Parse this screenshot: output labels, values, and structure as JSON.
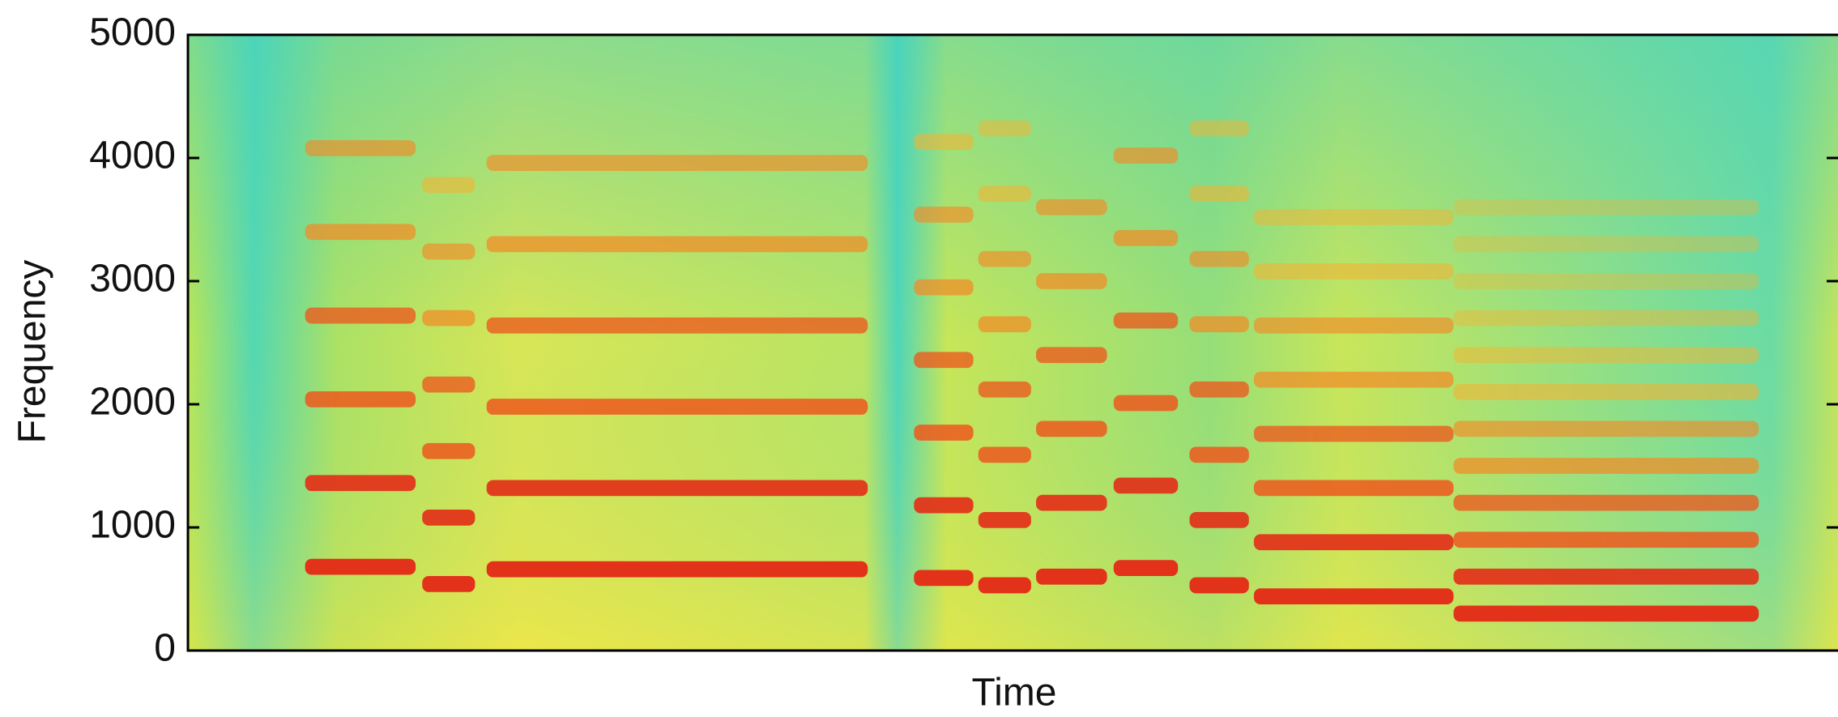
{
  "chart_data": {
    "type": "spectrogram",
    "ylabel": "Frequency",
    "xlabel": "Time",
    "ylim": [
      0,
      5000
    ],
    "yticks": [
      0,
      1000,
      2000,
      3000,
      4000,
      5000
    ],
    "xlim": [
      0,
      1
    ],
    "colors": [
      "#e2321a",
      "#ec5a1e",
      "#f28a26",
      "#f5b232"
    ],
    "events": [
      {
        "start": 0.071,
        "end": 0.138,
        "f0": 680,
        "harmonics": 6
      },
      {
        "start": 0.142,
        "end": 0.174,
        "f0": 540,
        "harmonics": 7
      },
      {
        "start": 0.181,
        "end": 0.412,
        "f0": 660,
        "harmonics": 6
      },
      {
        "start": 0.44,
        "end": 0.476,
        "f0": 590,
        "harmonics": 7
      },
      {
        "start": 0.479,
        "end": 0.511,
        "f0": 530,
        "harmonics": 8
      },
      {
        "start": 0.514,
        "end": 0.557,
        "f0": 600,
        "harmonics": 6
      },
      {
        "start": 0.561,
        "end": 0.6,
        "f0": 670,
        "harmonics": 6
      },
      {
        "start": 0.607,
        "end": 0.643,
        "f0": 530,
        "harmonics": 8
      },
      {
        "start": 0.646,
        "end": 0.767,
        "f0": 440,
        "harmonics": 8
      },
      {
        "start": 0.767,
        "end": 0.952,
        "f0": 300,
        "harmonics": 12
      }
    ]
  }
}
